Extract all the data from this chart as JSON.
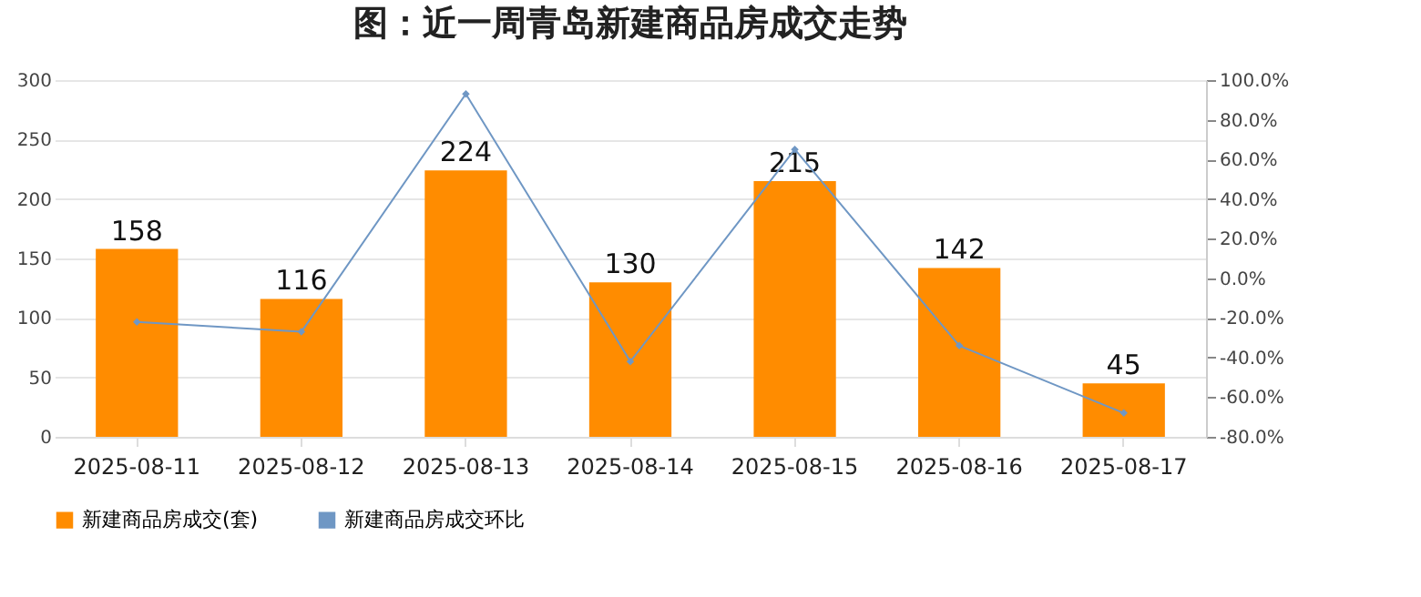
{
  "chart_data": {
    "type": "bar",
    "title": "图：近一周青岛新建商品房成交走势",
    "categories": [
      "2025-08-11",
      "2025-08-12",
      "2025-08-13",
      "2025-08-14",
      "2025-08-15",
      "2025-08-16",
      "2025-08-17"
    ],
    "series": [
      {
        "name": "新建商品房成交(套)",
        "color": "#ff8c00",
        "values": [
          158,
          116,
          224,
          130,
          215,
          142,
          45
        ],
        "value_labels": [
          "158",
          "116",
          "224",
          "130",
          "215",
          "142",
          "45"
        ]
      },
      {
        "name": "新建商品房成交环比",
        "type": "line",
        "axis": "y2",
        "color": "#6f97c4",
        "marker": "diamond",
        "values": [
          -22,
          -27,
          93,
          -42,
          65,
          -34,
          -68
        ]
      }
    ],
    "ylim": [
      0,
      300
    ],
    "yticks": [
      0,
      50,
      100,
      150,
      200,
      250,
      300
    ],
    "y2lim": [
      -80,
      100
    ],
    "y2ticks": [
      {
        "value": -80,
        "label": "-80.0%"
      },
      {
        "value": -60,
        "label": "-60.0%"
      },
      {
        "value": -40,
        "label": "-40.0%"
      },
      {
        "value": -20,
        "label": "-20.0%"
      },
      {
        "value": 0,
        "label": "0.0%"
      },
      {
        "value": 20,
        "label": "20.0%"
      },
      {
        "value": 40,
        "label": "40.0%"
      },
      {
        "value": 60,
        "label": "60.0%"
      },
      {
        "value": 80,
        "label": "80.0%"
      },
      {
        "value": 100,
        "label": "100.0%"
      }
    ],
    "grid": "y",
    "legend": "bottom"
  }
}
